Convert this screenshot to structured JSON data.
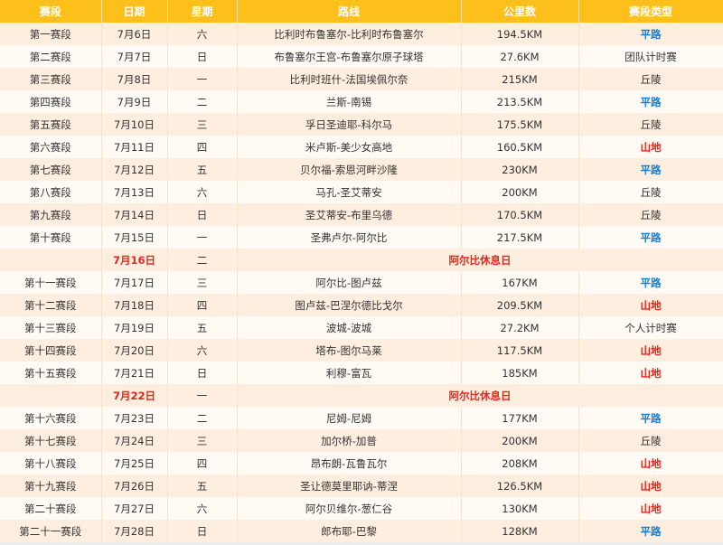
{
  "headers": [
    "赛段",
    "日期",
    "星期",
    "路线",
    "公里数",
    "赛段类型"
  ],
  "colors": {
    "header_bg": "#fdbf1a",
    "flat": "#1a7fd0",
    "mountain": "#e0281e",
    "rest": "#e0281e",
    "stripe": "#fdeedf"
  },
  "rows": [
    {
      "stage": "第一赛段",
      "date": "7月6日",
      "weekday": "六",
      "route": "比利时布鲁塞尔-比利时布鲁塞尔",
      "distance": "194.5KM",
      "type": "平路",
      "kind": "flat"
    },
    {
      "stage": "第二赛段",
      "date": "7月7日",
      "weekday": "日",
      "route": "布鲁塞尔王宫-布鲁塞尔原子球塔",
      "distance": "27.6KM",
      "type": "团队计时赛",
      "kind": "plain"
    },
    {
      "stage": "第三赛段",
      "date": "7月8日",
      "weekday": "一",
      "route": "比利时班什-法国埃佩尔奈",
      "distance": "215KM",
      "type": "丘陵",
      "kind": "plain"
    },
    {
      "stage": "第四赛段",
      "date": "7月9日",
      "weekday": "二",
      "route": "兰斯-南锡",
      "distance": "213.5KM",
      "type": "平路",
      "kind": "flat"
    },
    {
      "stage": "第五赛段",
      "date": "7月10日",
      "weekday": "三",
      "route": "孚日圣迪耶-科尔马",
      "distance": "175.5KM",
      "type": "丘陵",
      "kind": "plain"
    },
    {
      "stage": "第六赛段",
      "date": "7月11日",
      "weekday": "四",
      "route": "米卢斯-美少女高地",
      "distance": "160.5KM",
      "type": "山地",
      "kind": "mountain"
    },
    {
      "stage": "第七赛段",
      "date": "7月12日",
      "weekday": "五",
      "route": "贝尔福-索恩河畔沙隆",
      "distance": "230KM",
      "type": "平路",
      "kind": "flat"
    },
    {
      "stage": "第八赛段",
      "date": "7月13日",
      "weekday": "六",
      "route": "马孔-圣艾蒂安",
      "distance": "200KM",
      "type": "丘陵",
      "kind": "plain"
    },
    {
      "stage": "第九赛段",
      "date": "7月14日",
      "weekday": "日",
      "route": "圣艾蒂安-布里乌德",
      "distance": "170.5KM",
      "type": "丘陵",
      "kind": "plain"
    },
    {
      "stage": "第十赛段",
      "date": "7月15日",
      "weekday": "一",
      "route": "圣弗卢尔-阿尔比",
      "distance": "217.5KM",
      "type": "平路",
      "kind": "flat"
    },
    {
      "rest": true,
      "date": "7月16日",
      "weekday": "二",
      "label": "阿尔比休息日"
    },
    {
      "stage": "第十一赛段",
      "date": "7月17日",
      "weekday": "三",
      "route": "阿尔比-图卢兹",
      "distance": "167KM",
      "type": "平路",
      "kind": "flat"
    },
    {
      "stage": "第十二赛段",
      "date": "7月18日",
      "weekday": "四",
      "route": "图卢兹-巴涅尔德比戈尔",
      "distance": "209.5KM",
      "type": "山地",
      "kind": "mountain"
    },
    {
      "stage": "第十三赛段",
      "date": "7月19日",
      "weekday": "五",
      "route": "波城-波城",
      "distance": "27.2KM",
      "type": "个人计时赛",
      "kind": "plain"
    },
    {
      "stage": "第十四赛段",
      "date": "7月20日",
      "weekday": "六",
      "route": "塔布-图尔马莱",
      "distance": "117.5KM",
      "type": "山地",
      "kind": "mountain"
    },
    {
      "stage": "第十五赛段",
      "date": "7月21日",
      "weekday": "日",
      "route": "利穆-富瓦",
      "distance": "185KM",
      "type": "山地",
      "kind": "mountain"
    },
    {
      "rest": true,
      "date": "7月22日",
      "weekday": "一",
      "label": "阿尔比休息日"
    },
    {
      "stage": "第十六赛段",
      "date": "7月23日",
      "weekday": "二",
      "route": "尼姆-尼姆",
      "distance": "177KM",
      "type": "平路",
      "kind": "flat"
    },
    {
      "stage": "第十七赛段",
      "date": "7月24日",
      "weekday": "三",
      "route": "加尔桥-加普",
      "distance": "200KM",
      "type": "丘陵",
      "kind": "plain"
    },
    {
      "stage": "第十八赛段",
      "date": "7月25日",
      "weekday": "四",
      "route": "昂布朗-瓦鲁瓦尔",
      "distance": "208KM",
      "type": "山地",
      "kind": "mountain"
    },
    {
      "stage": "第十九赛段",
      "date": "7月26日",
      "weekday": "五",
      "route": "圣让德莫里耶讷-蒂涅",
      "distance": "126.5KM",
      "type": "山地",
      "kind": "mountain"
    },
    {
      "stage": "第二十赛段",
      "date": "7月27日",
      "weekday": "六",
      "route": "阿尔贝维尔-葱仁谷",
      "distance": "130KM",
      "type": "山地",
      "kind": "mountain"
    },
    {
      "stage": "第二十一赛段",
      "date": "7月28日",
      "weekday": "日",
      "route": "郎布耶-巴黎",
      "distance": "128KM",
      "type": "平路",
      "kind": "flat"
    }
  ]
}
